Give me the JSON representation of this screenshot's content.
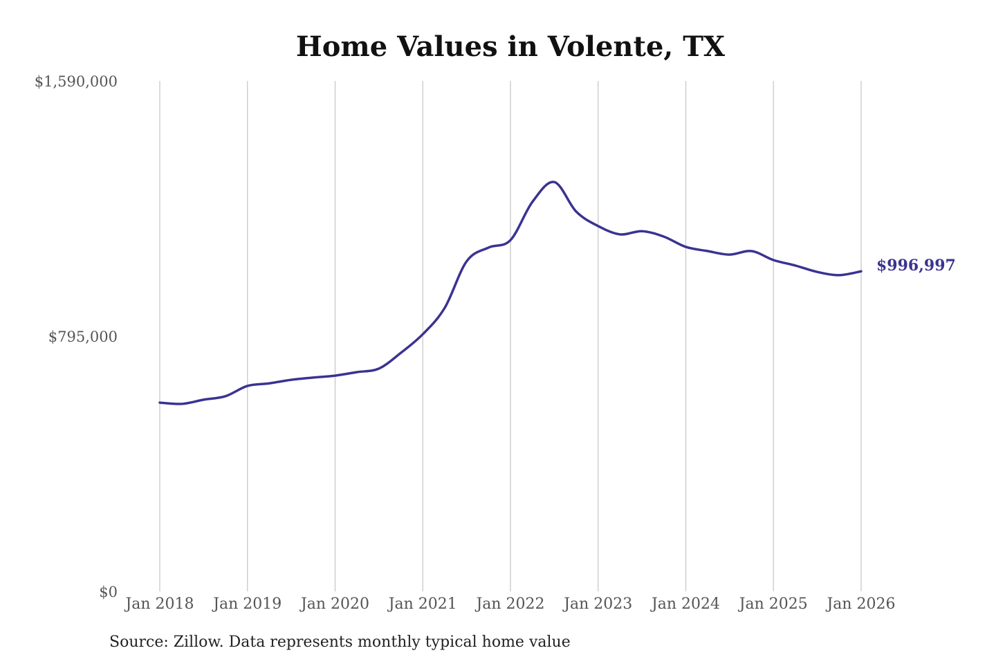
{
  "chart_data": {
    "type": "line",
    "title": "Home Values in Volente, TX",
    "source": "Source: Zillow. Data represents monthly typical home value",
    "xlabel": "",
    "ylabel": "",
    "ylim": [
      0,
      1590000
    ],
    "yticks": [
      {
        "value": 0,
        "label": "$0"
      },
      {
        "value": 795000,
        "label": "$795,000"
      },
      {
        "value": 1590000,
        "label": "$1,590,000"
      }
    ],
    "xticks": [
      {
        "value": "2018-01",
        "label": "Jan 2018"
      },
      {
        "value": "2019-01",
        "label": "Jan 2019"
      },
      {
        "value": "2020-01",
        "label": "Jan 2020"
      },
      {
        "value": "2021-01",
        "label": "Jan 2021"
      },
      {
        "value": "2022-01",
        "label": "Jan 2022"
      },
      {
        "value": "2023-01",
        "label": "Jan 2023"
      },
      {
        "value": "2024-01",
        "label": "Jan 2024"
      },
      {
        "value": "2025-01",
        "label": "Jan 2025"
      },
      {
        "value": "2026-01",
        "label": "Jan 2026"
      }
    ],
    "grid": "vertical",
    "line_color": "#3a3391",
    "end_label": "$996,997",
    "series": [
      {
        "x": [
          "2018-01",
          "2018-04",
          "2018-07",
          "2018-10",
          "2019-01",
          "2019-04",
          "2019-07",
          "2019-10",
          "2020-01",
          "2020-04",
          "2020-07",
          "2020-10",
          "2021-01",
          "2021-04",
          "2021-07",
          "2021-10",
          "2022-01",
          "2022-04",
          "2022-07",
          "2022-10",
          "2023-01",
          "2023-04",
          "2023-07",
          "2023-10",
          "2024-01",
          "2024-04",
          "2024-07",
          "2024-10",
          "2025-01",
          "2025-04",
          "2025-07",
          "2025-10",
          "2026-01"
        ],
        "y": [
          588000,
          584000,
          597000,
          608000,
          640000,
          648000,
          659000,
          666000,
          672000,
          683000,
          694000,
          743000,
          801000,
          883000,
          1028000,
          1071000,
          1094000,
          1213000,
          1275000,
          1183000,
          1138000,
          1112000,
          1122000,
          1105000,
          1073000,
          1060000,
          1049000,
          1060000,
          1032000,
          1015000,
          995000,
          985000,
          996997
        ]
      }
    ]
  }
}
